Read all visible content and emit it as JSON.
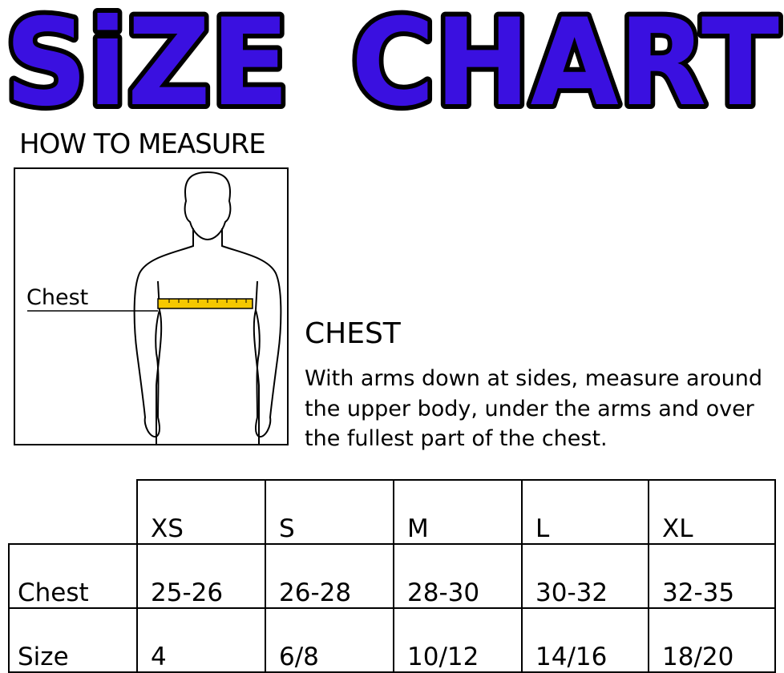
{
  "title": {
    "word1": "SiZE",
    "word2": "CHART",
    "fill_color": "#3a10e0",
    "outline_color": "#000000"
  },
  "how_to_measure": "HOW TO MEASURE",
  "figure": {
    "chest_label": "Chest",
    "tape_color": "#f5c800"
  },
  "chest_section": {
    "heading": "CHEST",
    "description": "With arms down at sides, measure around the upper body, under the arms and over the fullest part of the chest."
  },
  "table": {
    "sizes": [
      "XS",
      "S",
      "M",
      "L",
      "XL"
    ],
    "rows": [
      {
        "label": "Chest",
        "values": [
          "25-26",
          "26-28",
          "28-30",
          "30-32",
          "32-35"
        ]
      },
      {
        "label": "Size",
        "values": [
          "4",
          "6/8",
          "10/12",
          "14/16",
          "18/20"
        ]
      }
    ]
  }
}
